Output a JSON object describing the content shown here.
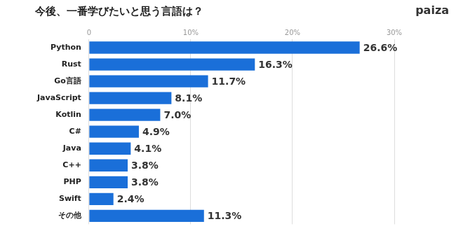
{
  "chart_data": {
    "type": "bar",
    "orientation": "horizontal",
    "title": "今後、一番学びたいと思う言語は？",
    "annotations": [
      "paiza"
    ],
    "categories": [
      "Python",
      "Rust",
      "Go言語",
      "JavaScript",
      "Kotlin",
      "C#",
      "Java",
      "C++",
      "PHP",
      "Swift",
      "その他"
    ],
    "values": [
      26.6,
      16.3,
      11.7,
      8.1,
      7.0,
      4.9,
      4.1,
      3.8,
      3.8,
      2.4,
      11.3
    ],
    "value_labels": [
      "26.6%",
      "16.3%",
      "11.7%",
      "8.1%",
      "7.0%",
      "4.9%",
      "4.1%",
      "3.8%",
      "3.8%",
      "2.4%",
      "11.3%"
    ],
    "data_labels": true,
    "color": "#1a6fd9",
    "xlim": [
      0,
      30
    ],
    "xticks": [
      0,
      {
        "value": 10,
        "label": "10%"
      },
      {
        "value": 20,
        "label": "20%"
      },
      {
        "value": 30,
        "label": "30%"
      }
    ],
    "grid": true
  }
}
